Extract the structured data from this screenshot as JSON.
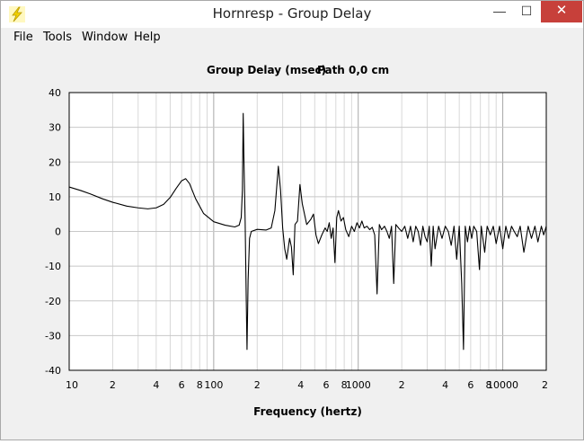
{
  "window": {
    "title": "Hornresp - Group Delay"
  },
  "controls": {
    "minimize": "—",
    "maximize": "☐",
    "close": "✕"
  },
  "menu": [
    {
      "label": "File"
    },
    {
      "label": "Tools"
    },
    {
      "label": "Window"
    },
    {
      "label": "Help"
    }
  ],
  "colors": {
    "close_button": "#c7403a",
    "curve": "#000000",
    "grid": "#c8c8c8",
    "plot_bg": "#ffffff",
    "window_bg": "#f0f0f0"
  },
  "chart_data": {
    "type": "line",
    "title": "Group Delay (msec)",
    "subtitle": "Path 0,0 cm",
    "xlabel": "Frequency (hertz)",
    "ylabel": "",
    "x_scale": "log",
    "xlim": [
      10,
      20000
    ],
    "ylim": [
      -40,
      40
    ],
    "grid": true,
    "x_tick_labels": [
      {
        "x": 10,
        "label": "10"
      },
      {
        "x": 20,
        "label": "2"
      },
      {
        "x": 40,
        "label": "4"
      },
      {
        "x": 60,
        "label": "6"
      },
      {
        "x": 80,
        "label": "8"
      },
      {
        "x": 100,
        "label": "100"
      },
      {
        "x": 200,
        "label": "2"
      },
      {
        "x": 400,
        "label": "4"
      },
      {
        "x": 600,
        "label": "6"
      },
      {
        "x": 800,
        "label": "8"
      },
      {
        "x": 1000,
        "label": "1000"
      },
      {
        "x": 2000,
        "label": "2"
      },
      {
        "x": 4000,
        "label": "4"
      },
      {
        "x": 6000,
        "label": "6"
      },
      {
        "x": 8000,
        "label": "8"
      },
      {
        "x": 10000,
        "label": "10000"
      },
      {
        "x": 20000,
        "label": "2"
      }
    ],
    "y_ticks": [
      40,
      30,
      20,
      10,
      0,
      -10,
      -20,
      -30,
      -40
    ],
    "series": [
      {
        "values": [
          [
            10,
            12.8
          ],
          [
            12,
            11.8
          ],
          [
            14,
            10.8
          ],
          [
            17,
            9.4
          ],
          [
            20,
            8.4
          ],
          [
            25,
            7.3
          ],
          [
            30,
            6.8
          ],
          [
            35,
            6.5
          ],
          [
            40,
            6.8
          ],
          [
            45,
            7.8
          ],
          [
            50,
            9.8
          ],
          [
            55,
            12.4
          ],
          [
            60,
            14.6
          ],
          [
            64,
            15.2
          ],
          [
            68,
            13.8
          ],
          [
            75,
            9.4
          ],
          [
            85,
            5.2
          ],
          [
            100,
            2.8
          ],
          [
            120,
            1.8
          ],
          [
            140,
            1.3
          ],
          [
            150,
            1.8
          ],
          [
            155,
            4.0
          ],
          [
            158,
            12.0
          ],
          [
            160,
            34.0
          ],
          [
            162,
            20.0
          ],
          [
            165,
            3.0
          ],
          [
            168,
            -20.0
          ],
          [
            170,
            -34.0
          ],
          [
            173,
            -14.0
          ],
          [
            177,
            -2.0
          ],
          [
            182,
            0.0
          ],
          [
            200,
            0.6
          ],
          [
            230,
            0.4
          ],
          [
            250,
            1.0
          ],
          [
            265,
            6.0
          ],
          [
            280,
            18.8
          ],
          [
            290,
            12.0
          ],
          [
            300,
            1.0
          ],
          [
            310,
            -5.0
          ],
          [
            320,
            -8.0
          ],
          [
            335,
            -2.0
          ],
          [
            345,
            -4.5
          ],
          [
            355,
            -12.5
          ],
          [
            365,
            2.0
          ],
          [
            380,
            3.0
          ],
          [
            395,
            13.5
          ],
          [
            410,
            8.0
          ],
          [
            440,
            2.0
          ],
          [
            470,
            3.5
          ],
          [
            490,
            5.0
          ],
          [
            510,
            -1.0
          ],
          [
            530,
            -3.5
          ],
          [
            560,
            -1.0
          ],
          [
            590,
            1.0
          ],
          [
            610,
            0.0
          ],
          [
            630,
            2.5
          ],
          [
            650,
            -2.0
          ],
          [
            670,
            1.0
          ],
          [
            690,
            -9.0
          ],
          [
            710,
            4.0
          ],
          [
            730,
            6.0
          ],
          [
            760,
            3.0
          ],
          [
            790,
            4.0
          ],
          [
            820,
            0.5
          ],
          [
            860,
            -1.5
          ],
          [
            900,
            1.5
          ],
          [
            940,
            0.0
          ],
          [
            980,
            2.5
          ],
          [
            1020,
            1.0
          ],
          [
            1060,
            3.0
          ],
          [
            1100,
            1.0
          ],
          [
            1150,
            1.5
          ],
          [
            1200,
            0.5
          ],
          [
            1250,
            1.2
          ],
          [
            1300,
            -1.0
          ],
          [
            1350,
            -18.0
          ],
          [
            1400,
            2.0
          ],
          [
            1450,
            0.5
          ],
          [
            1520,
            1.5
          ],
          [
            1580,
            0.0
          ],
          [
            1640,
            -2.0
          ],
          [
            1700,
            1.5
          ],
          [
            1760,
            -15.0
          ],
          [
            1820,
            2.0
          ],
          [
            1900,
            1.0
          ],
          [
            2000,
            0.0
          ],
          [
            2100,
            1.5
          ],
          [
            2200,
            -2.0
          ],
          [
            2300,
            1.5
          ],
          [
            2400,
            -3.0
          ],
          [
            2500,
            1.5
          ],
          [
            2600,
            0.0
          ],
          [
            2700,
            -4.0
          ],
          [
            2800,
            1.5
          ],
          [
            2900,
            -1.5
          ],
          [
            3000,
            -3.0
          ],
          [
            3100,
            1.5
          ],
          [
            3200,
            -10.0
          ],
          [
            3300,
            1.5
          ],
          [
            3400,
            -5.0
          ],
          [
            3600,
            1.5
          ],
          [
            3800,
            -2.0
          ],
          [
            4000,
            1.5
          ],
          [
            4200,
            0.0
          ],
          [
            4400,
            -4.0
          ],
          [
            4600,
            1.5
          ],
          [
            4800,
            -8.0
          ],
          [
            5000,
            1.5
          ],
          [
            5200,
            -15.0
          ],
          [
            5350,
            -34.0
          ],
          [
            5500,
            1.5
          ],
          [
            5700,
            -3.0
          ],
          [
            5900,
            1.5
          ],
          [
            6100,
            -2.0
          ],
          [
            6300,
            1.5
          ],
          [
            6600,
            0.0
          ],
          [
            6900,
            -11.0
          ],
          [
            7100,
            1.5
          ],
          [
            7500,
            -6.0
          ],
          [
            7800,
            1.5
          ],
          [
            8200,
            -1.0
          ],
          [
            8600,
            1.5
          ],
          [
            9000,
            -3.5
          ],
          [
            9500,
            1.5
          ],
          [
            10000,
            -5.0
          ],
          [
            10500,
            1.5
          ],
          [
            11000,
            -2.0
          ],
          [
            11500,
            1.5
          ],
          [
            12000,
            0.0
          ],
          [
            12600,
            -1.5
          ],
          [
            13200,
            1.5
          ],
          [
            14000,
            -6.0
          ],
          [
            15000,
            1.5
          ],
          [
            15800,
            -2.0
          ],
          [
            16700,
            1.5
          ],
          [
            17500,
            -3.0
          ],
          [
            18500,
            1.5
          ],
          [
            19200,
            -1.0
          ],
          [
            20000,
            1.5
          ]
        ]
      }
    ]
  }
}
